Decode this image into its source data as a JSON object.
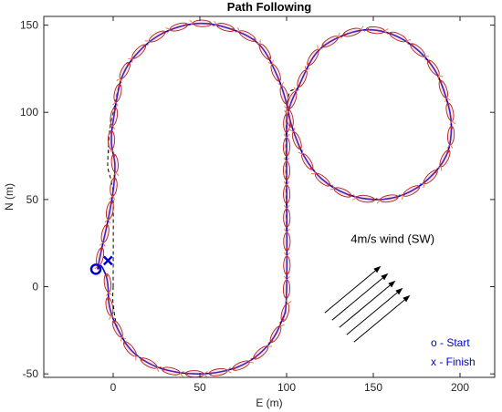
{
  "chart_data": {
    "type": "line",
    "title": "Path Following",
    "xlabel": "E (m)",
    "ylabel": "N (m)",
    "xlim": [
      -40,
      220
    ],
    "ylim": [
      -52,
      155
    ],
    "xticks": [
      0,
      50,
      100,
      150,
      200
    ],
    "yticks": [
      -50,
      0,
      50,
      100,
      150
    ],
    "grid": false,
    "series": [
      {
        "role": "reference",
        "color": "#000000",
        "style": "dashed",
        "points": [
          [
            0,
            0
          ],
          [
            0,
            50
          ],
          [
            -1,
            60
          ],
          [
            -3,
            68
          ],
          [
            -3,
            75
          ],
          [
            -2,
            90
          ],
          [
            0,
            100
          ],
          [
            5,
            120
          ],
          [
            15,
            135
          ],
          [
            30,
            146
          ],
          [
            50,
            151
          ],
          [
            70,
            147
          ],
          [
            85,
            138
          ],
          [
            95,
            120
          ],
          [
            100,
            105
          ],
          [
            103,
            92
          ],
          [
            110,
            75
          ],
          [
            120,
            62
          ],
          [
            135,
            53
          ],
          [
            152,
            50
          ],
          [
            168,
            53
          ],
          [
            182,
            62
          ],
          [
            192,
            75
          ],
          [
            195,
            90
          ],
          [
            193,
            105
          ],
          [
            185,
            125
          ],
          [
            170,
            140
          ],
          [
            152,
            147
          ],
          [
            135,
            145
          ],
          [
            118,
            135
          ],
          [
            107,
            115
          ],
          [
            100,
            100
          ],
          [
            100,
            -2
          ],
          [
            97,
            -20
          ],
          [
            88,
            -35
          ],
          [
            72,
            -46
          ],
          [
            50,
            -50
          ],
          [
            28,
            -47
          ],
          [
            12,
            -38
          ],
          [
            3,
            -25
          ],
          [
            0,
            -10
          ],
          [
            0,
            0
          ]
        ]
      },
      {
        "role": "actual",
        "color": "#0000cc",
        "style": "solid",
        "points": [
          [
            -9,
            10
          ],
          [
            -7,
            20
          ],
          [
            -3,
            38
          ],
          [
            0,
            55
          ],
          [
            1,
            70
          ],
          [
            -1,
            82
          ],
          [
            0,
            95
          ],
          [
            5,
            120
          ],
          [
            15,
            135
          ],
          [
            30,
            146
          ],
          [
            50,
            151
          ],
          [
            70,
            147
          ],
          [
            85,
            138
          ],
          [
            95,
            120
          ],
          [
            100,
            105
          ],
          [
            103,
            92
          ],
          [
            110,
            75
          ],
          [
            120,
            62
          ],
          [
            135,
            53
          ],
          [
            152,
            50
          ],
          [
            168,
            53
          ],
          [
            182,
            62
          ],
          [
            192,
            75
          ],
          [
            195,
            90
          ],
          [
            193,
            105
          ],
          [
            185,
            125
          ],
          [
            170,
            140
          ],
          [
            152,
            147
          ],
          [
            135,
            145
          ],
          [
            118,
            135
          ],
          [
            107,
            115
          ],
          [
            101,
            100
          ],
          [
            100,
            80
          ],
          [
            100,
            -2
          ],
          [
            97,
            -20
          ],
          [
            88,
            -35
          ],
          [
            72,
            -46
          ],
          [
            50,
            -50
          ],
          [
            28,
            -47
          ],
          [
            12,
            -38
          ],
          [
            3,
            -25
          ],
          [
            -2,
            -12
          ],
          [
            -3,
            0
          ],
          [
            -4,
            6
          ],
          [
            -7,
            12
          ],
          [
            -9,
            10
          ]
        ]
      }
    ],
    "markers": [
      {
        "symbol": "o",
        "x": -10,
        "y": 10,
        "color": "#0000cc"
      },
      {
        "symbol": "x",
        "x": -3,
        "y": 15,
        "color": "#0000cc"
      }
    ],
    "annotations": [
      {
        "text": "4m/s wind (SW)",
        "x": 137,
        "y": 25
      }
    ],
    "wind_arrows": {
      "color": "#000000",
      "direction": "toward NE",
      "count": 5
    },
    "legend": {
      "placement": "bottom-right",
      "entries": [
        "o - Start",
        "x - Finish"
      ]
    }
  }
}
